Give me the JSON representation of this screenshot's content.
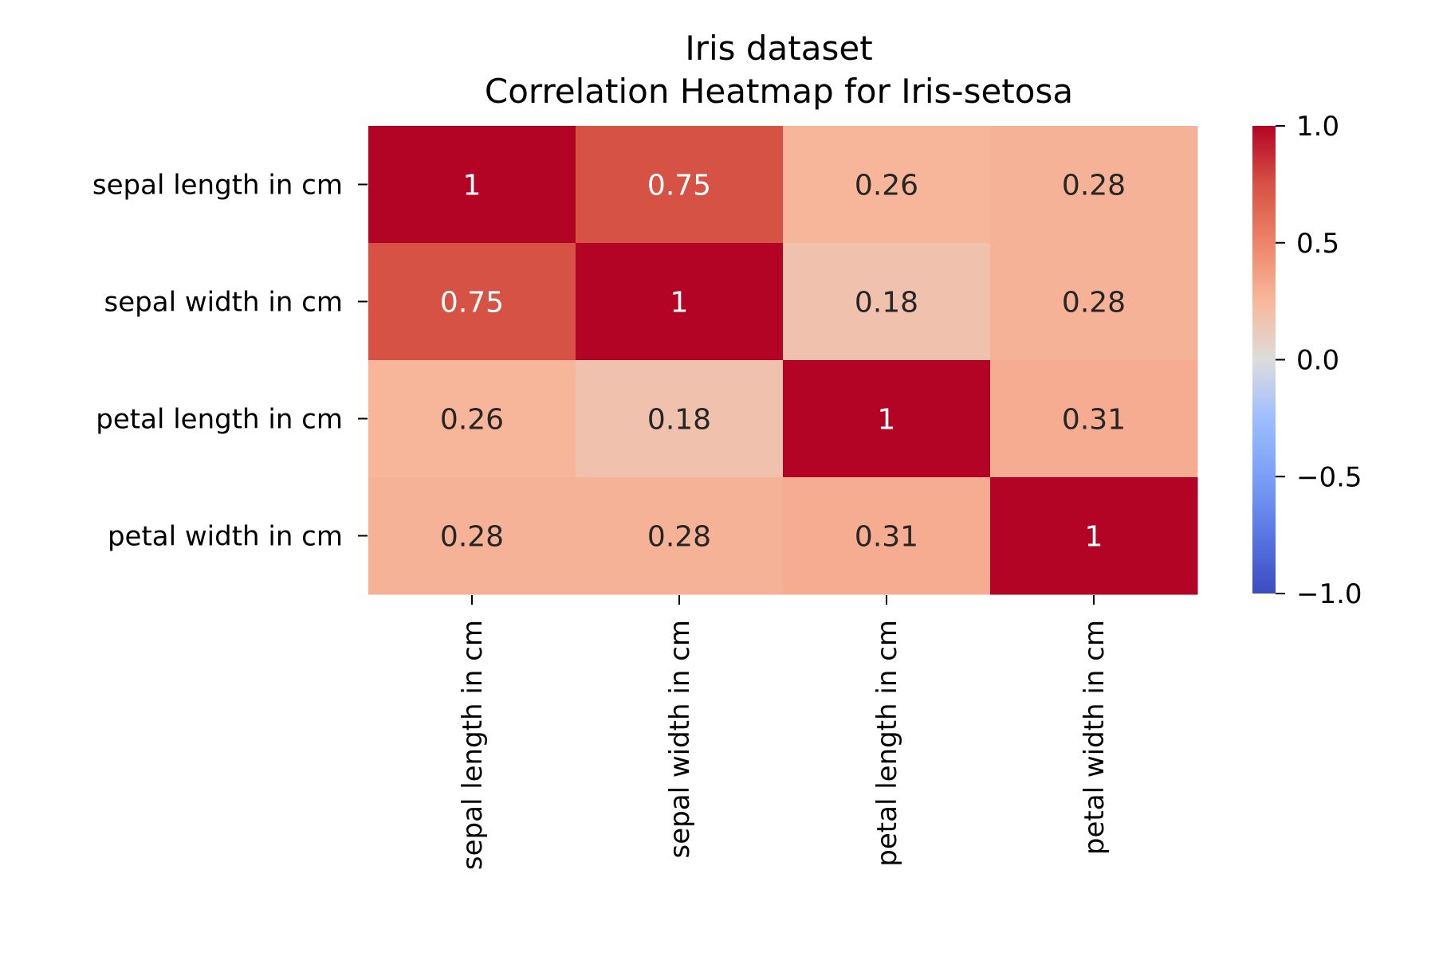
{
  "chart_data": {
    "type": "heatmap",
    "title": [
      "Iris dataset",
      "Correlation Heatmap for Iris-setosa"
    ],
    "xlabel": "",
    "ylabel": "",
    "rows": [
      "sepal length in cm",
      "sepal width in cm",
      "petal length in cm",
      "petal width in cm"
    ],
    "columns": [
      "sepal length in cm",
      "sepal width in cm",
      "petal length in cm",
      "petal width in cm"
    ],
    "values": [
      [
        1.0,
        0.75,
        0.26,
        0.28
      ],
      [
        0.75,
        1.0,
        0.18,
        0.28
      ],
      [
        0.26,
        0.18,
        1.0,
        0.31
      ],
      [
        0.28,
        0.28,
        0.31,
        1.0
      ]
    ],
    "cell_labels": [
      [
        "1",
        "0.75",
        "0.26",
        "0.28"
      ],
      [
        "0.75",
        "1",
        "0.18",
        "0.28"
      ],
      [
        "0.26",
        "0.18",
        "1",
        "0.31"
      ],
      [
        "0.28",
        "0.28",
        "0.31",
        "1"
      ]
    ],
    "colormap": "coolwarm",
    "vmin": -1.0,
    "vmax": 1.0,
    "colorbar": {
      "ticks": [
        1.0,
        0.5,
        0.0,
        -0.5,
        -1.0
      ],
      "tick_labels": [
        "1.0",
        "0.5",
        "0.0",
        "−0.5",
        "−1.0"
      ]
    },
    "grid": false,
    "legend": "right colorbar"
  }
}
